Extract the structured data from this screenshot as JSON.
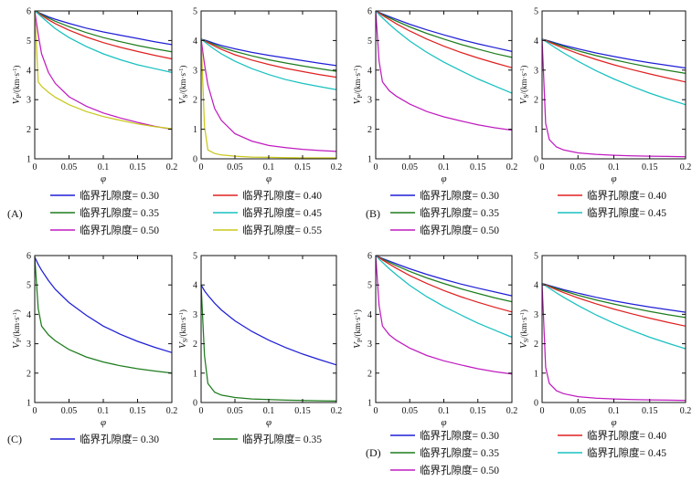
{
  "figure_title": "",
  "colors": {
    "0.30": "#1f1fd6",
    "0.35": "#1e7d1e",
    "0.40": "#e02020",
    "0.45": "#18c0c0",
    "0.50": "#c01cc0",
    "0.55": "#c8c81c"
  },
  "legend_prefix": "临界孔隙度=",
  "chart_data": [
    {
      "panel": "A",
      "quantity": "Vp",
      "type": "line",
      "xlabel": "φ",
      "ylabel_main": "V",
      "ylabel_sub": "P",
      "ylabel_unit": "/(km·s",
      "xlim": [
        0,
        0.2
      ],
      "ylim": [
        1,
        6
      ],
      "xticks": [
        "0",
        "0.05",
        "0.1",
        "0.15",
        "0.2"
      ],
      "yticks": [
        "1",
        "2",
        "3",
        "4",
        "5",
        "6"
      ],
      "x": [
        0,
        0.005,
        0.01,
        0.02,
        0.03,
        0.05,
        0.075,
        0.1,
        0.125,
        0.15,
        0.175,
        0.2
      ],
      "series": [
        {
          "name": "0.30",
          "values": [
            6.0,
            5.95,
            5.9,
            5.8,
            5.72,
            5.58,
            5.42,
            5.29,
            5.18,
            5.07,
            4.96,
            4.86
          ]
        },
        {
          "name": "0.35",
          "values": [
            6.0,
            5.95,
            5.88,
            5.76,
            5.65,
            5.47,
            5.27,
            5.1,
            4.96,
            4.83,
            4.72,
            4.62
          ]
        },
        {
          "name": "0.40",
          "values": [
            6.0,
            5.93,
            5.85,
            5.7,
            5.57,
            5.35,
            5.12,
            4.93,
            4.77,
            4.63,
            4.5,
            4.38
          ]
        },
        {
          "name": "0.45",
          "values": [
            6.0,
            5.9,
            5.8,
            5.6,
            5.4,
            5.1,
            4.8,
            4.55,
            4.35,
            4.18,
            4.05,
            3.92
          ]
        },
        {
          "name": "0.50",
          "values": [
            6.0,
            5.2,
            4.55,
            3.92,
            3.55,
            3.1,
            2.78,
            2.55,
            2.38,
            2.23,
            2.1,
            2.0
          ]
        },
        {
          "name": "0.55",
          "values": [
            6.0,
            3.6,
            3.45,
            3.25,
            3.08,
            2.83,
            2.6,
            2.43,
            2.3,
            2.18,
            2.09,
            2.02
          ]
        }
      ]
    },
    {
      "panel": "A",
      "quantity": "Vs",
      "type": "line",
      "xlabel": "φ",
      "ylabel_main": "V",
      "ylabel_sub": "S",
      "ylabel_unit": "/(km·s",
      "xlim": [
        0,
        0.2
      ],
      "ylim": [
        0,
        5
      ],
      "xticks": [
        "0",
        "0.05",
        "0.1",
        "0.15",
        "0.2"
      ],
      "yticks": [
        "0",
        "1",
        "2",
        "3",
        "4",
        "5"
      ],
      "x": [
        0,
        0.005,
        0.01,
        0.02,
        0.03,
        0.05,
        0.075,
        0.1,
        0.125,
        0.15,
        0.175,
        0.2
      ],
      "series": [
        {
          "name": "0.30",
          "values": [
            4.05,
            4.02,
            3.98,
            3.9,
            3.83,
            3.72,
            3.6,
            3.5,
            3.41,
            3.32,
            3.23,
            3.15
          ]
        },
        {
          "name": "0.35",
          "values": [
            4.05,
            4.0,
            3.95,
            3.86,
            3.77,
            3.63,
            3.48,
            3.35,
            3.24,
            3.14,
            3.05,
            2.96
          ]
        },
        {
          "name": "0.40",
          "values": [
            4.05,
            3.99,
            3.93,
            3.81,
            3.7,
            3.52,
            3.34,
            3.19,
            3.06,
            2.95,
            2.85,
            2.76
          ]
        },
        {
          "name": "0.45",
          "values": [
            4.05,
            3.96,
            3.87,
            3.7,
            3.55,
            3.3,
            3.05,
            2.85,
            2.68,
            2.55,
            2.44,
            2.34
          ]
        },
        {
          "name": "0.50",
          "values": [
            4.05,
            3.2,
            2.5,
            1.7,
            1.3,
            0.85,
            0.6,
            0.45,
            0.38,
            0.32,
            0.28,
            0.25
          ]
        },
        {
          "name": "0.55",
          "values": [
            4.05,
            1.1,
            0.3,
            0.18,
            0.13,
            0.09,
            0.06,
            0.05,
            0.04,
            0.03,
            0.03,
            0.03
          ]
        }
      ]
    },
    {
      "panel": "B",
      "quantity": "Vp",
      "type": "line",
      "xlabel": "φ",
      "ylabel_main": "V",
      "ylabel_sub": "P",
      "ylabel_unit": "/(km·s",
      "xlim": [
        0,
        0.2
      ],
      "ylim": [
        1,
        6
      ],
      "xticks": [
        "0",
        "0.05",
        "0.1",
        "0.15",
        "0.2"
      ],
      "yticks": [
        "1",
        "2",
        "3",
        "4",
        "5",
        "6"
      ],
      "x": [
        0,
        0.005,
        0.01,
        0.02,
        0.03,
        0.05,
        0.075,
        0.1,
        0.125,
        0.15,
        0.175,
        0.2
      ],
      "series": [
        {
          "name": "0.30",
          "values": [
            6.0,
            5.95,
            5.9,
            5.81,
            5.72,
            5.55,
            5.36,
            5.19,
            5.03,
            4.89,
            4.76,
            4.63
          ]
        },
        {
          "name": "0.35",
          "values": [
            6.0,
            5.94,
            5.88,
            5.77,
            5.66,
            5.46,
            5.24,
            5.05,
            4.87,
            4.71,
            4.56,
            4.43
          ]
        },
        {
          "name": "0.40",
          "values": [
            6.0,
            5.93,
            5.85,
            5.71,
            5.57,
            5.32,
            5.05,
            4.81,
            4.6,
            4.41,
            4.24,
            4.08
          ]
        },
        {
          "name": "0.45",
          "values": [
            6.0,
            5.88,
            5.77,
            5.55,
            5.35,
            4.98,
            4.6,
            4.27,
            3.98,
            3.7,
            3.46,
            3.22
          ]
        },
        {
          "name": "0.50",
          "values": [
            6.0,
            4.3,
            3.6,
            3.3,
            3.12,
            2.85,
            2.6,
            2.42,
            2.28,
            2.15,
            2.05,
            1.97
          ]
        }
      ]
    },
    {
      "panel": "B",
      "quantity": "Vs",
      "type": "line",
      "xlabel": "φ",
      "ylabel_main": "V",
      "ylabel_sub": "S",
      "ylabel_unit": "/(km·s",
      "xlim": [
        0,
        0.2
      ],
      "ylim": [
        0,
        5
      ],
      "xticks": [
        "0",
        "0.05",
        "0.1",
        "0.15",
        "0.2"
      ],
      "yticks": [
        "0",
        "1",
        "2",
        "3",
        "4",
        "5"
      ],
      "x": [
        0,
        0.005,
        0.01,
        0.02,
        0.03,
        0.05,
        0.075,
        0.1,
        0.125,
        0.15,
        0.175,
        0.2
      ],
      "series": [
        {
          "name": "0.30",
          "values": [
            4.05,
            4.02,
            3.98,
            3.91,
            3.84,
            3.72,
            3.58,
            3.46,
            3.35,
            3.25,
            3.16,
            3.07
          ]
        },
        {
          "name": "0.35",
          "values": [
            4.05,
            4.01,
            3.96,
            3.88,
            3.8,
            3.65,
            3.49,
            3.35,
            3.22,
            3.1,
            2.99,
            2.89
          ]
        },
        {
          "name": "0.40",
          "values": [
            4.05,
            4.0,
            3.94,
            3.84,
            3.74,
            3.56,
            3.36,
            3.18,
            3.02,
            2.87,
            2.73,
            2.6
          ]
        },
        {
          "name": "0.45",
          "values": [
            4.05,
            3.97,
            3.89,
            3.73,
            3.58,
            3.3,
            2.98,
            2.7,
            2.45,
            2.22,
            2.02,
            1.83
          ]
        },
        {
          "name": "0.50",
          "values": [
            4.05,
            1.2,
            0.65,
            0.4,
            0.3,
            0.2,
            0.15,
            0.12,
            0.1,
            0.09,
            0.08,
            0.07
          ]
        }
      ]
    },
    {
      "panel": "C",
      "quantity": "Vp",
      "type": "line",
      "xlabel": "φ",
      "ylabel_main": "V",
      "ylabel_sub": "P",
      "ylabel_unit": "/(km·s",
      "xlim": [
        0,
        0.2
      ],
      "ylim": [
        1,
        6
      ],
      "xticks": [
        "0",
        "0.05",
        "0.1",
        "0.15",
        "0.2"
      ],
      "yticks": [
        "1",
        "2",
        "3",
        "4",
        "5",
        "6"
      ],
      "x": [
        0,
        0.005,
        0.01,
        0.02,
        0.03,
        0.05,
        0.075,
        0.1,
        0.125,
        0.15,
        0.175,
        0.2
      ],
      "series": [
        {
          "name": "0.30",
          "values": [
            5.95,
            5.7,
            5.5,
            5.15,
            4.85,
            4.4,
            3.97,
            3.6,
            3.32,
            3.08,
            2.88,
            2.7
          ]
        },
        {
          "name": "0.35",
          "values": [
            5.95,
            4.2,
            3.6,
            3.3,
            3.1,
            2.8,
            2.55,
            2.38,
            2.25,
            2.15,
            2.07,
            2.0
          ]
        }
      ]
    },
    {
      "panel": "C",
      "quantity": "Vs",
      "type": "line",
      "xlabel": "φ",
      "ylabel_main": "V",
      "ylabel_sub": "S",
      "ylabel_unit": "/(km·s",
      "xlim": [
        0,
        0.2
      ],
      "ylim": [
        0,
        5
      ],
      "xticks": [
        "0",
        "0.05",
        "0.1",
        "0.15",
        "0.2"
      ],
      "yticks": [
        "0",
        "1",
        "2",
        "3",
        "4",
        "5"
      ],
      "x": [
        0,
        0.005,
        0.01,
        0.02,
        0.03,
        0.05,
        0.075,
        0.1,
        0.125,
        0.15,
        0.175,
        0.2
      ],
      "series": [
        {
          "name": "0.30",
          "values": [
            4.0,
            3.8,
            3.65,
            3.38,
            3.15,
            2.78,
            2.42,
            2.12,
            1.87,
            1.65,
            1.46,
            1.28
          ]
        },
        {
          "name": "0.35",
          "values": [
            4.0,
            1.6,
            0.65,
            0.35,
            0.25,
            0.17,
            0.12,
            0.1,
            0.08,
            0.07,
            0.06,
            0.05
          ]
        }
      ]
    },
    {
      "panel": "D",
      "quantity": "Vp",
      "type": "line",
      "xlabel": "φ",
      "ylabel_main": "V",
      "ylabel_sub": "P",
      "ylabel_unit": "/(km·s",
      "xlim": [
        0,
        0.2
      ],
      "ylim": [
        1,
        6
      ],
      "xticks": [
        "0",
        "0.05",
        "0.1",
        "0.15",
        "0.2"
      ],
      "yticks": [
        "1",
        "2",
        "3",
        "4",
        "5",
        "6"
      ],
      "x": [
        0,
        0.005,
        0.01,
        0.02,
        0.03,
        0.05,
        0.075,
        0.1,
        0.125,
        0.15,
        0.175,
        0.2
      ],
      "series": [
        {
          "name": "0.30",
          "values": [
            6.0,
            5.95,
            5.9,
            5.81,
            5.72,
            5.55,
            5.36,
            5.19,
            5.03,
            4.89,
            4.76,
            4.63
          ]
        },
        {
          "name": "0.35",
          "values": [
            6.0,
            5.94,
            5.88,
            5.77,
            5.66,
            5.46,
            5.24,
            5.05,
            4.87,
            4.71,
            4.56,
            4.43
          ]
        },
        {
          "name": "0.40",
          "values": [
            6.0,
            5.93,
            5.85,
            5.71,
            5.57,
            5.32,
            5.05,
            4.81,
            4.6,
            4.41,
            4.24,
            4.08
          ]
        },
        {
          "name": "0.45",
          "values": [
            6.0,
            5.88,
            5.77,
            5.55,
            5.35,
            4.98,
            4.6,
            4.27,
            3.98,
            3.7,
            3.46,
            3.22
          ]
        },
        {
          "name": "0.50",
          "values": [
            6.0,
            4.3,
            3.6,
            3.3,
            3.12,
            2.85,
            2.6,
            2.42,
            2.28,
            2.15,
            2.05,
            1.97
          ]
        }
      ]
    },
    {
      "panel": "D",
      "quantity": "Vs",
      "type": "line",
      "xlabel": "φ",
      "ylabel_main": "V",
      "ylabel_sub": "S",
      "ylabel_unit": "/(km·s",
      "xlim": [
        0,
        0.2
      ],
      "ylim": [
        0,
        5
      ],
      "xticks": [
        "0",
        "0.05",
        "0.1",
        "0.15",
        "0.2"
      ],
      "yticks": [
        "0",
        "1",
        "2",
        "3",
        "4",
        "5"
      ],
      "x": [
        0,
        0.005,
        0.01,
        0.02,
        0.03,
        0.05,
        0.075,
        0.1,
        0.125,
        0.15,
        0.175,
        0.2
      ],
      "series": [
        {
          "name": "0.30",
          "values": [
            4.05,
            4.02,
            3.98,
            3.91,
            3.84,
            3.72,
            3.58,
            3.46,
            3.35,
            3.25,
            3.16,
            3.07
          ]
        },
        {
          "name": "0.35",
          "values": [
            4.05,
            4.01,
            3.96,
            3.88,
            3.8,
            3.65,
            3.49,
            3.35,
            3.22,
            3.1,
            2.99,
            2.89
          ]
        },
        {
          "name": "0.40",
          "values": [
            4.05,
            4.0,
            3.94,
            3.84,
            3.74,
            3.56,
            3.36,
            3.18,
            3.02,
            2.87,
            2.73,
            2.6
          ]
        },
        {
          "name": "0.45",
          "values": [
            4.05,
            3.97,
            3.89,
            3.73,
            3.58,
            3.3,
            2.98,
            2.7,
            2.45,
            2.22,
            2.02,
            1.83
          ]
        },
        {
          "name": "0.50",
          "values": [
            4.05,
            1.2,
            0.65,
            0.4,
            0.3,
            0.2,
            0.15,
            0.12,
            0.1,
            0.09,
            0.08,
            0.07
          ]
        }
      ]
    }
  ],
  "legends": [
    {
      "panel": "A",
      "letter": "(A)",
      "entries": [
        {
          "name": "0.30",
          "text": "0.30"
        },
        {
          "name": "0.40",
          "text": "0.40"
        },
        {
          "name": "0.35",
          "text": "0.35"
        },
        {
          "name": "0.45",
          "text": "0.45"
        },
        {
          "name": "0.50",
          "text": "0.50"
        },
        {
          "name": "0.55",
          "text": "0.55"
        }
      ]
    },
    {
      "panel": "B",
      "letter": "(B)",
      "entries": [
        {
          "name": "0.30",
          "text": "0.30"
        },
        {
          "name": "0.40",
          "text": "0.40"
        },
        {
          "name": "0.35",
          "text": "0.35"
        },
        {
          "name": "0.45",
          "text": "0.45"
        },
        {
          "name": "0.50",
          "text": "0.50"
        }
      ]
    },
    {
      "panel": "C",
      "letter": "(C)",
      "entries": [
        {
          "name": "0.30",
          "text": "0.30"
        },
        {
          "name": "0.35",
          "text": "0.35"
        }
      ]
    },
    {
      "panel": "D",
      "letter": "(D)",
      "entries": [
        {
          "name": "0.30",
          "text": "0.30"
        },
        {
          "name": "0.40",
          "text": "0.40"
        },
        {
          "name": "0.35",
          "text": "0.35"
        },
        {
          "name": "0.45",
          "text": "0.45"
        },
        {
          "name": "0.50",
          "text": "0.50"
        }
      ]
    }
  ]
}
